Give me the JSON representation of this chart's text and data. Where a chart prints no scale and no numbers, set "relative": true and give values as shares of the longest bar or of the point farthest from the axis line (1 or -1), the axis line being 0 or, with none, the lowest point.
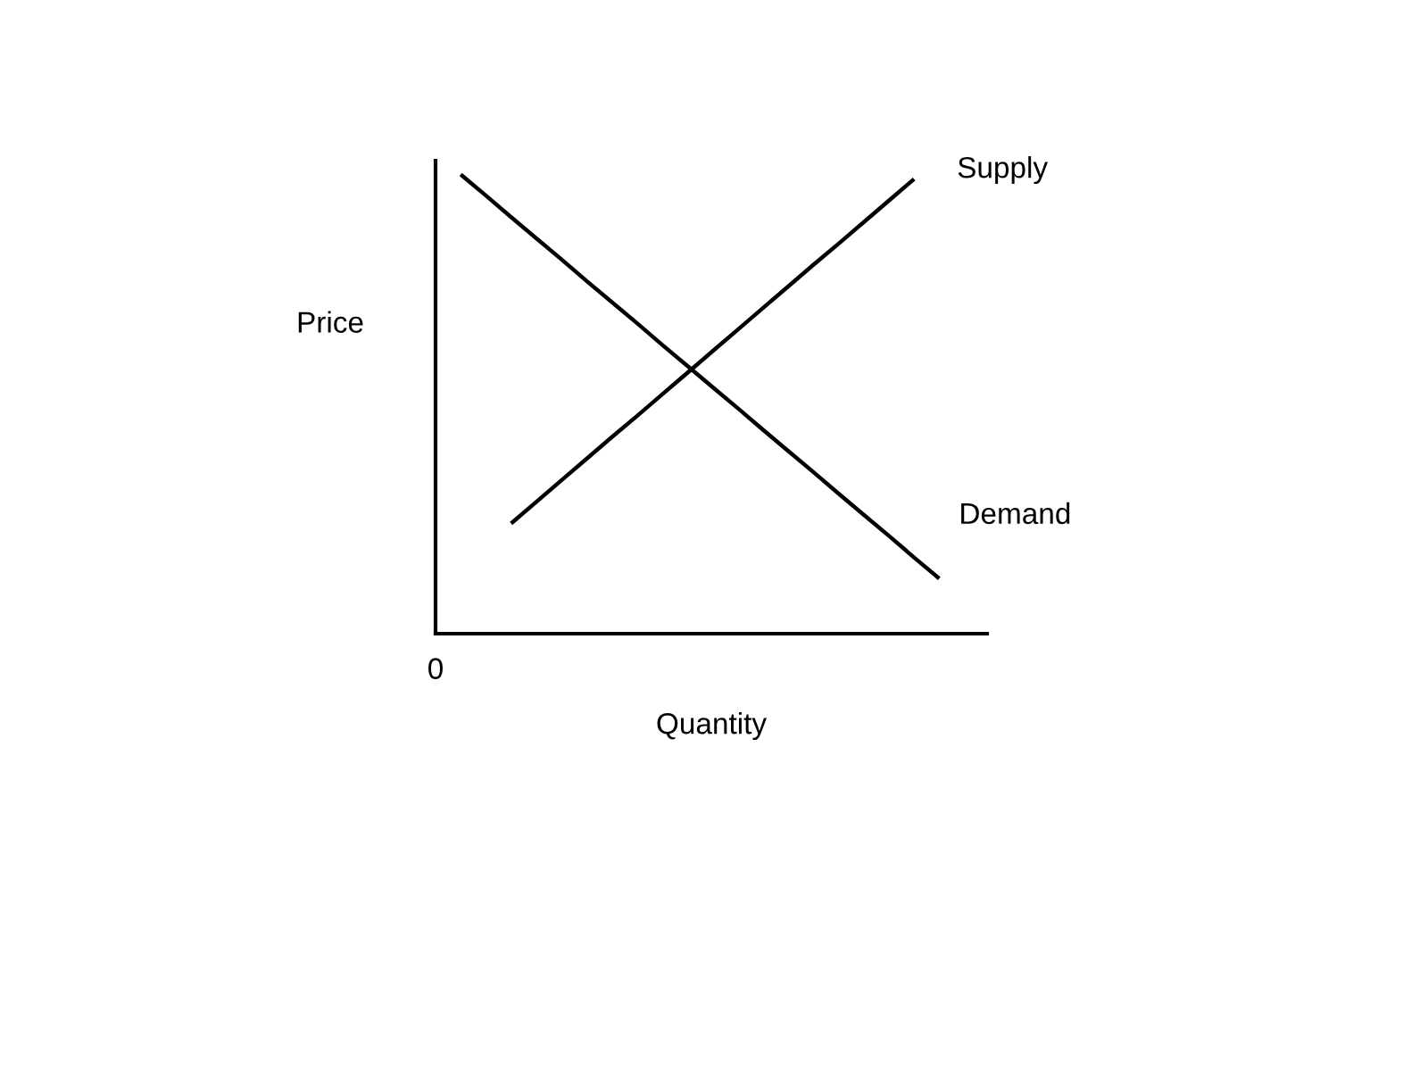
{
  "chart_data": {
    "type": "line",
    "relative": true,
    "xlabel": "Quantity",
    "ylabel": "Price",
    "annotations": [
      "0"
    ],
    "categories": [
      null,
      null,
      null,
      null,
      null,
      null,
      null,
      null,
      null,
      null,
      null,
      null,
      null,
      null,
      null,
      null,
      null,
      null,
      null,
      null,
      null
    ],
    "series": [
      {
        "name": "Demand",
        "color": "#000000",
        "values": [
          1,
          0.954,
          0.907,
          0.861,
          0.815,
          0.768,
          0.722,
          0.676,
          0.629,
          0.583,
          0.537,
          0.491,
          0.444,
          0.398,
          0.352,
          0.305,
          0.259,
          0.213,
          0.166,
          0.12,
          null
        ]
      },
      {
        "name": "Supply",
        "color": "#000000",
        "values": [
          null,
          null,
          0.24,
          0.287,
          0.334,
          0.381,
          0.428,
          0.474,
          0.521,
          0.568,
          0.615,
          0.662,
          0.709,
          0.756,
          0.803,
          0.849,
          0.896,
          0.943,
          0.99,
          null,
          null
        ]
      }
    ]
  }
}
